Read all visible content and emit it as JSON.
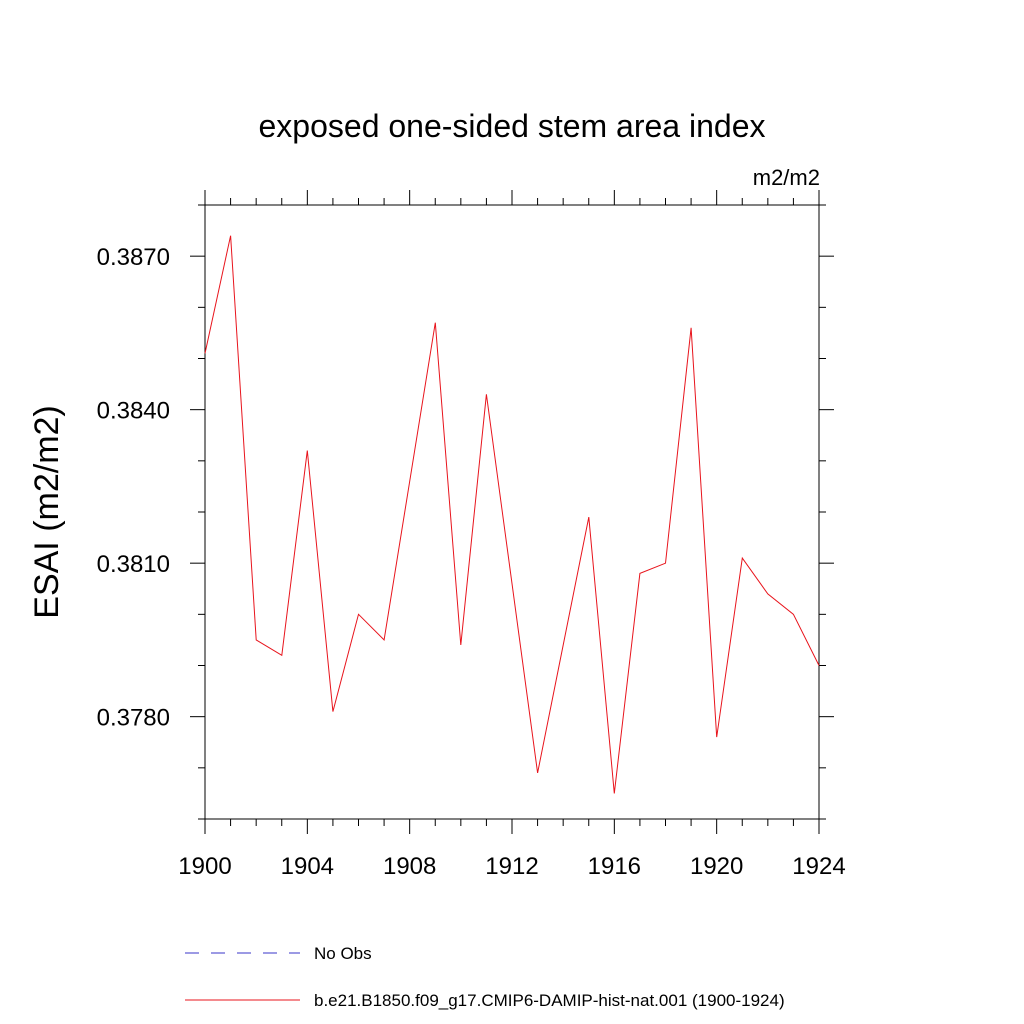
{
  "chart_data": {
    "type": "line",
    "title": "exposed one-sided stem area index",
    "units_label": "m2/m2",
    "ylabel": "ESAI  (m2/m2)",
    "xlabel": "",
    "xlim": [
      1900,
      1924
    ],
    "ylim": [
      0.376,
      0.388
    ],
    "x_ticks": [
      "1900",
      "1904",
      "1908",
      "1912",
      "1916",
      "1920",
      "1924"
    ],
    "y_ticks": [
      "0.3780",
      "0.3810",
      "0.3840",
      "0.3870"
    ],
    "grid": false,
    "legend_position": "bottom",
    "colors": {
      "model": "#e8141c",
      "obs": "#3a35c8"
    },
    "series": [
      {
        "name": "No Obs",
        "style": "dashed",
        "x": [],
        "values": []
      },
      {
        "name": "b.e21.B1850.f09_g17.CMIP6-DAMIP-hist-nat.001 (1900-1924)",
        "style": "solid",
        "x": [
          1900,
          1901,
          1902,
          1903,
          1904,
          1905,
          1906,
          1907,
          1908,
          1909,
          1910,
          1911,
          1912,
          1913,
          1914,
          1915,
          1916,
          1917,
          1918,
          1919,
          1920,
          1921,
          1922,
          1923,
          1924
        ],
        "values": [
          0.3851,
          0.3874,
          0.3795,
          0.3792,
          0.3832,
          0.3781,
          0.38,
          0.3795,
          0.3826,
          0.3857,
          0.3794,
          0.3843,
          0.3806,
          0.3769,
          0.3794,
          0.3819,
          0.3765,
          0.3808,
          0.381,
          0.3856,
          0.3776,
          0.3811,
          0.3804,
          0.38,
          0.379
        ]
      }
    ]
  }
}
